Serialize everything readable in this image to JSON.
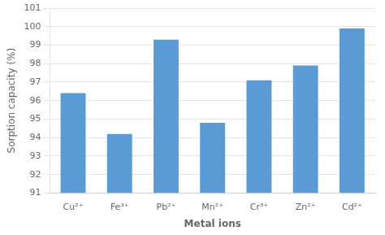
{
  "chart_data": {
    "type": "bar",
    "categories": [
      "Cu²⁺",
      "Fe³⁺",
      "Pb²⁺",
      "Mn²⁺",
      "Cr³⁺",
      "Zn²⁺",
      "Cd²⁺"
    ],
    "values": [
      96.4,
      94.2,
      99.3,
      94.8,
      97.1,
      97.9,
      99.9
    ],
    "color": "#5B9BD5",
    "xlabel": "Metal ions",
    "ylabel": "Sorption capacity (%)",
    "ylim": [
      91,
      101
    ],
    "yticks": [
      91,
      92,
      93,
      94,
      95,
      96,
      97,
      98,
      99,
      100,
      101
    ],
    "grid": true
  }
}
